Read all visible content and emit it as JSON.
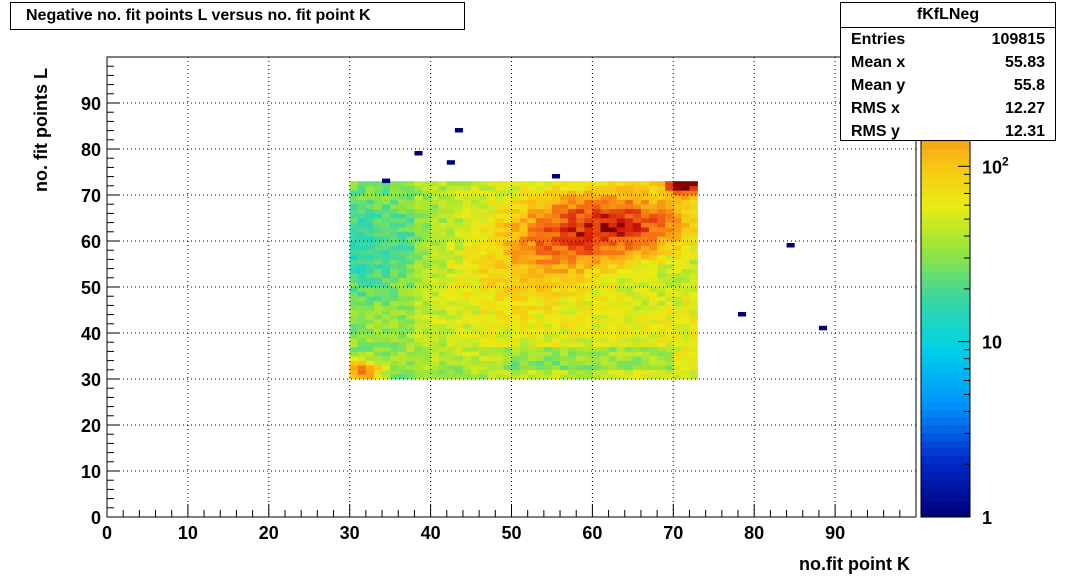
{
  "chart_data": {
    "type": "heatmap",
    "title": "Negative no. fit points L versus no. fit point K",
    "xlabel": "no.fit point K",
    "ylabel": "no. fit points  L",
    "xlim": [
      0,
      100
    ],
    "ylim": [
      0,
      100
    ],
    "x_ticks": [
      "0",
      "10",
      "20",
      "30",
      "40",
      "50",
      "60",
      "70",
      "80",
      "90"
    ],
    "y_ticks": [
      "0",
      "10",
      "20",
      "30",
      "40",
      "50",
      "60",
      "70",
      "80",
      "90"
    ],
    "grid": true,
    "z_scale": "log",
    "z_range": [
      1,
      420
    ],
    "z_ticks": [
      {
        "value": 1,
        "label": "1"
      },
      {
        "value": 10,
        "label": "10"
      },
      {
        "value": 100,
        "label": "10",
        "sup": "2"
      }
    ],
    "bin_width": 1,
    "main_region": {
      "x_range": [
        30,
        73
      ],
      "y_range": [
        30,
        73
      ],
      "description_values": "approx. counts: 20-60 at low K, peak ~300 near K=62 L=63, ~200 near K=31 L=31, ~400 near K=71 L=72"
    },
    "isolated_bins": [
      {
        "x": 34,
        "y": 73,
        "z": 1
      },
      {
        "x": 38,
        "y": 79,
        "z": 1
      },
      {
        "x": 42,
        "y": 77,
        "z": 1
      },
      {
        "x": 43,
        "y": 84,
        "z": 1
      },
      {
        "x": 55,
        "y": 74,
        "z": 1
      },
      {
        "x": 84,
        "y": 59,
        "z": 1
      },
      {
        "x": 78,
        "y": 44,
        "z": 1
      },
      {
        "x": 88,
        "y": 41,
        "z": 1
      }
    ]
  },
  "stats": {
    "name": "fKfLNeg",
    "rows": [
      {
        "label": "Entries",
        "value": "109815"
      },
      {
        "label": "Mean x",
        "value": "55.83"
      },
      {
        "label": "Mean y",
        "value": "55.8"
      },
      {
        "label": "RMS x",
        "value": "12.27"
      },
      {
        "label": "RMS y",
        "value": "12.31"
      }
    ]
  }
}
